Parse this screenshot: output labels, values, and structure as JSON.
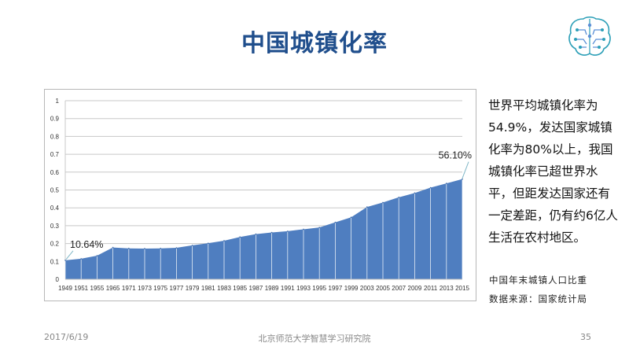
{
  "slide": {
    "title": "中国城镇化率",
    "description": "世界平均城镇化率为54.9%，发达国家城镇化率为80%以上，我国城镇化率已超世界水平，但距发达国家还有一定差距，仍有约6亿人生活在农村地区。",
    "caption_line1": "中国年末城镇人口比重",
    "caption_line2": "数据来源：国家统计局",
    "logo_icon": "brain-circuit-icon"
  },
  "footer": {
    "date": "2017/6/19",
    "organization": "北京师范大学智慧学习研究院",
    "page_number": "35"
  },
  "chart_data": {
    "type": "area",
    "title": "",
    "xlabel": "",
    "ylabel": "",
    "ylim": [
      0,
      1
    ],
    "yticks": [
      "0",
      "0.1",
      "0.2",
      "0.3",
      "0.4",
      "0.5",
      "0.6",
      "0.7",
      "0.8",
      "0.9",
      "1"
    ],
    "grid": true,
    "fill_color": "#4F7EC0",
    "x": [
      "1949",
      "1951",
      "1955",
      "1965",
      "1971",
      "1973",
      "1975",
      "1977",
      "1979",
      "1981",
      "1983",
      "1985",
      "1987",
      "1989",
      "1991",
      "1993",
      "1995",
      "1997",
      "1999",
      "2003",
      "2005",
      "2007",
      "2009",
      "2011",
      "2013",
      "2015"
    ],
    "series": [
      {
        "values": [
          0.1064,
          0.115,
          0.132,
          0.178,
          0.173,
          0.172,
          0.173,
          0.176,
          0.19,
          0.202,
          0.216,
          0.237,
          0.253,
          0.262,
          0.269,
          0.28,
          0.29,
          0.319,
          0.347,
          0.405,
          0.43,
          0.459,
          0.483,
          0.513,
          0.537,
          0.561
        ]
      }
    ],
    "annotations": [
      {
        "label": "10.64%",
        "x": "1949"
      },
      {
        "label": "56.10%",
        "x": "2015"
      }
    ]
  }
}
